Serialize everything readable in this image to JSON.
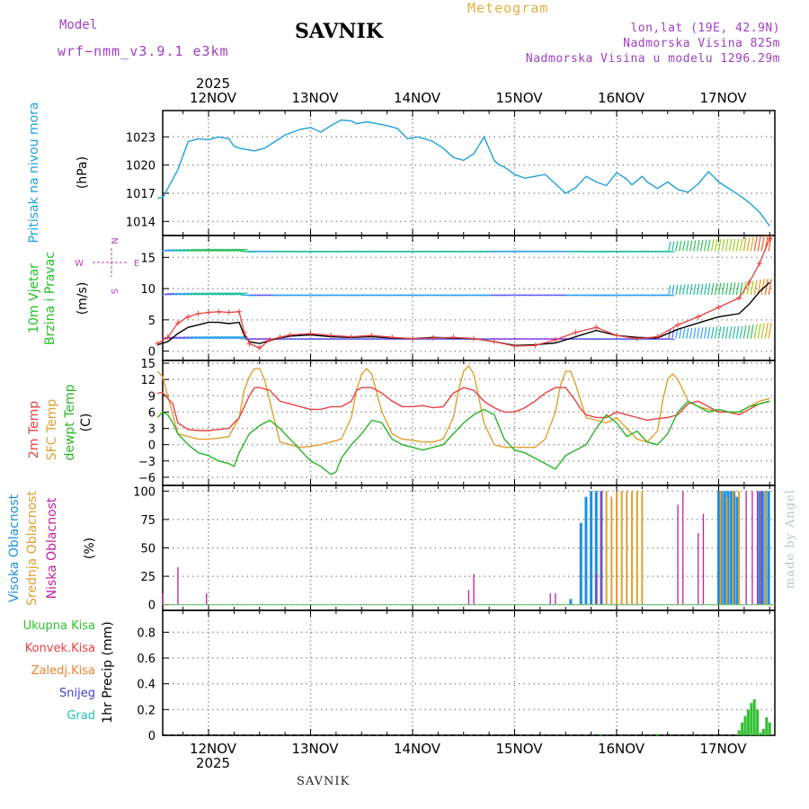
{
  "header": {
    "model_label": "Model",
    "model_name": "wrf−nmm_v3.9.1 e3km",
    "title": "SAVNIK",
    "meteogram": "Meteogram",
    "lonlat": "lon,lat (19E, 42.9N)",
    "altitude": "Nadmorska Visina 825m",
    "model_altitude": "Nadmorska Visina u modelu 1296.29m"
  },
  "footer": {
    "station": "SAVNIK",
    "credit": "made by Angel",
    "year_top": "2025",
    "year_bottom": "2025"
  },
  "colors": {
    "pressure": "#1ea0dc",
    "temp2m": "#e84040",
    "sfctemp": "#e0a030",
    "dewpoint": "#28b428",
    "windspeed": "#000000",
    "gust": "#e84040",
    "high_cloud": "#1e90dc",
    "mid_cloud": "#e0a030",
    "low_cloud": "#c020a0",
    "total_precip": "#30c030",
    "conv_precip": "#e84040",
    "frozen_precip": "#f08030",
    "snow": "#4040d0",
    "graupel": "#20c0c0",
    "wind_label": "#20c020",
    "compass": "#c040c0"
  },
  "chart_data": [
    {
      "type": "line",
      "title": "Pritisak na nivou mora",
      "ylabel": "(hPa)",
      "ylim": [
        1012.5,
        1025.8
      ],
      "yticks": [
        1014,
        1017,
        1020,
        1023
      ],
      "x_unit": "days since 12NOV 00UTC",
      "x_categories": [
        "12NOV",
        "13NOV",
        "14NOV",
        "15NOV",
        "16NOV",
        "17NOV"
      ],
      "series": [
        {
          "name": "Pritisak na nivou mora",
          "x": [
            -0.5,
            -0.45,
            -0.4,
            -0.3,
            -0.25,
            -0.2,
            -0.1,
            0,
            0.1,
            0.2,
            0.25,
            0.3,
            0.35,
            0.45,
            0.55,
            0.65,
            0.75,
            0.9,
            1.0,
            1.1,
            1.2,
            1.3,
            1.4,
            1.45,
            1.55,
            1.65,
            1.75,
            1.85,
            1.95,
            2.05,
            2.15,
            2.2,
            2.3,
            2.4,
            2.5,
            2.6,
            2.7,
            2.8,
            2.85,
            2.9,
            3.0,
            3.1,
            3.2,
            3.3,
            3.4,
            3.5,
            3.6,
            3.7,
            3.8,
            3.9,
            4.0,
            4.1,
            4.15,
            4.25,
            4.3,
            4.4,
            4.5,
            4.6,
            4.7,
            4.8,
            4.9,
            5.0,
            5.1,
            5.2,
            5.3,
            5.4,
            5.5
          ],
          "values": [
            1016.5,
            1016.5,
            1017.5,
            1019.5,
            1021.0,
            1022.5,
            1022.8,
            1022.7,
            1023.0,
            1022.8,
            1022.0,
            1021.8,
            1021.7,
            1021.5,
            1021.8,
            1022.5,
            1023.2,
            1023.8,
            1024.0,
            1023.5,
            1024.2,
            1024.8,
            1024.7,
            1024.4,
            1024.6,
            1024.4,
            1024.2,
            1023.9,
            1022.8,
            1023.0,
            1022.7,
            1022.5,
            1021.8,
            1020.8,
            1020.5,
            1021.2,
            1023.0,
            1020.5,
            1020.0,
            1019.8,
            1019.0,
            1018.6,
            1018.8,
            1019.0,
            1018.0,
            1017.0,
            1017.6,
            1018.8,
            1018.2,
            1017.8,
            1019.2,
            1018.5,
            1017.9,
            1018.8,
            1018.2,
            1017.5,
            1018.2,
            1017.4,
            1017.1,
            1018.0,
            1019.3,
            1018.2,
            1017.5,
            1016.8,
            1016.0,
            1015.0,
            1013.5
          ]
        }
      ]
    },
    {
      "type": "line",
      "title": "10m Vjetar Brzina i Pravac",
      "ylabel": "(m/s)",
      "ylim": [
        -1.5,
        18.5
      ],
      "yticks": [
        0,
        5,
        10,
        15
      ],
      "compass": {
        "north": "N",
        "south": "S",
        "east": "E",
        "west": "W"
      },
      "series": [
        {
          "name": "windspeed",
          "x": [
            -0.5,
            -0.4,
            -0.3,
            -0.2,
            -0.1,
            0,
            0.1,
            0.2,
            0.3,
            0.35,
            0.4,
            0.5,
            0.6,
            0.7,
            0.8,
            1.0,
            1.2,
            1.4,
            1.6,
            1.8,
            2.0,
            2.2,
            2.4,
            2.6,
            2.8,
            3.0,
            3.2,
            3.4,
            3.6,
            3.8,
            4.0,
            4.2,
            4.4,
            4.6,
            4.8,
            5.0,
            5.2,
            5.3,
            5.4,
            5.5
          ],
          "values": [
            1.0,
            1.5,
            2.8,
            3.8,
            4.2,
            4.6,
            4.6,
            4.4,
            4.6,
            2.5,
            1.5,
            1.2,
            1.7,
            2.1,
            2.4,
            2.6,
            2.3,
            2.2,
            2.3,
            2.1,
            2.0,
            2.2,
            2.1,
            2.0,
            1.5,
            0.9,
            1.0,
            1.3,
            2.3,
            3.3,
            2.5,
            2.2,
            2.1,
            3.5,
            4.5,
            5.5,
            6.0,
            7.5,
            9.5,
            11.0
          ]
        },
        {
          "name": "gust",
          "x": [
            -0.5,
            -0.4,
            -0.3,
            -0.2,
            -0.1,
            0,
            0.1,
            0.2,
            0.3,
            0.35,
            0.4,
            0.5,
            0.6,
            0.7,
            0.8,
            1.0,
            1.2,
            1.4,
            1.6,
            1.8,
            2.0,
            2.2,
            2.4,
            2.6,
            2.8,
            3.0,
            3.2,
            3.4,
            3.6,
            3.8,
            4.0,
            4.2,
            4.4,
            4.6,
            4.8,
            5.0,
            5.2,
            5.3,
            5.4,
            5.5
          ],
          "values": [
            1.2,
            2.2,
            4.5,
            5.5,
            6.0,
            6.2,
            6.3,
            6.2,
            6.3,
            3.0,
            1.2,
            0.5,
            1.8,
            2.2,
            2.6,
            2.8,
            2.5,
            2.3,
            2.5,
            2.2,
            2.0,
            2.1,
            2.2,
            2.0,
            1.5,
            0.8,
            0.9,
            1.8,
            3.0,
            3.8,
            2.5,
            2.0,
            2.3,
            4.2,
            5.5,
            7.0,
            8.5,
            11.0,
            14.0,
            18.0
          ]
        }
      ]
    },
    {
      "type": "line",
      "title": "2m Temp / SFC Temp / dewpt Temp",
      "ylabel": "(C)",
      "ylim": [
        -7.5,
        15.5
      ],
      "yticks": [
        -6,
        -3,
        0,
        3,
        6,
        9,
        12,
        15
      ],
      "series": [
        {
          "name": "2m Temp",
          "x": [
            -0.5,
            -0.45,
            -0.4,
            -0.35,
            -0.3,
            -0.2,
            -0.1,
            0,
            0.1,
            0.2,
            0.3,
            0.4,
            0.45,
            0.5,
            0.6,
            0.7,
            0.8,
            0.9,
            1.0,
            1.1,
            1.2,
            1.3,
            1.4,
            1.45,
            1.5,
            1.6,
            1.7,
            1.8,
            1.9,
            2.0,
            2.1,
            2.2,
            2.3,
            2.4,
            2.5,
            2.6,
            2.7,
            2.8,
            2.9,
            3.0,
            3.1,
            3.2,
            3.3,
            3.4,
            3.5,
            3.6,
            3.65,
            3.7,
            3.8,
            3.9,
            4.0,
            4.1,
            4.2,
            4.3,
            4.4,
            4.5,
            4.6,
            4.7,
            4.8,
            4.9,
            5.0,
            5.1,
            5.2,
            5.3,
            5.4,
            5.5
          ],
          "values": [
            9.5,
            9.6,
            8.5,
            7.5,
            4.0,
            2.8,
            2.6,
            2.6,
            2.8,
            3.0,
            5.0,
            9.0,
            10.5,
            10.5,
            10.0,
            8.0,
            7.5,
            7.0,
            6.5,
            6.5,
            7.0,
            7.0,
            8.0,
            10.0,
            10.5,
            10.5,
            9.5,
            8.0,
            7.0,
            7.0,
            7.2,
            6.8,
            7.0,
            9.5,
            10.5,
            10.0,
            8.0,
            6.8,
            6.0,
            6.0,
            6.8,
            8.0,
            9.5,
            10.5,
            10.5,
            8.0,
            6.5,
            5.5,
            5.0,
            5.0,
            6.0,
            5.5,
            5.0,
            4.5,
            4.8,
            5.0,
            5.5,
            7.5,
            8.0,
            7.0,
            6.0,
            6.0,
            5.5,
            6.5,
            7.5,
            8.0
          ]
        },
        {
          "name": "SFC Temp",
          "x": [
            -0.5,
            -0.45,
            -0.4,
            -0.35,
            -0.3,
            -0.2,
            -0.1,
            0,
            0.1,
            0.2,
            0.3,
            0.35,
            0.4,
            0.45,
            0.5,
            0.55,
            0.6,
            0.7,
            0.8,
            0.9,
            1.0,
            1.1,
            1.2,
            1.3,
            1.4,
            1.45,
            1.5,
            1.55,
            1.6,
            1.7,
            1.8,
            1.9,
            2.0,
            2.1,
            2.2,
            2.3,
            2.4,
            2.45,
            2.5,
            2.55,
            2.6,
            2.7,
            2.8,
            2.9,
            3.0,
            3.1,
            3.2,
            3.3,
            3.4,
            3.45,
            3.5,
            3.55,
            3.6,
            3.7,
            3.8,
            3.9,
            4.0,
            4.1,
            4.2,
            4.3,
            4.4,
            4.45,
            4.5,
            4.55,
            4.6,
            4.7,
            4.8,
            4.9,
            5.0,
            5.1,
            5.2,
            5.3,
            5.4,
            5.5
          ],
          "values": [
            13.5,
            12.5,
            9.0,
            5.5,
            2.0,
            1.5,
            1.0,
            1.0,
            1.2,
            1.5,
            5.0,
            10.0,
            12.5,
            14.0,
            14.0,
            12.0,
            8.0,
            0.5,
            0.0,
            -0.5,
            -0.3,
            0.0,
            0.5,
            1.0,
            5.0,
            10.0,
            13.0,
            14.0,
            13.0,
            6.0,
            2.0,
            1.0,
            0.8,
            0.5,
            0.5,
            1.0,
            5.0,
            10.0,
            13.5,
            14.5,
            13.0,
            4.0,
            0.0,
            -0.5,
            -0.5,
            -0.5,
            -0.5,
            1.0,
            6.0,
            11.0,
            13.5,
            13.5,
            11.0,
            5.0,
            4.5,
            4.0,
            5.0,
            3.0,
            1.0,
            0.5,
            2.5,
            8.0,
            12.0,
            13.0,
            12.0,
            8.0,
            7.0,
            6.5,
            6.0,
            6.0,
            6.0,
            7.0,
            8.0,
            8.5
          ]
        },
        {
          "name": "dewpt Temp",
          "x": [
            -0.5,
            -0.45,
            -0.4,
            -0.35,
            -0.3,
            -0.2,
            -0.1,
            0,
            0.1,
            0.2,
            0.25,
            0.3,
            0.4,
            0.5,
            0.6,
            0.7,
            0.8,
            0.9,
            1.0,
            1.1,
            1.2,
            1.25,
            1.3,
            1.4,
            1.5,
            1.6,
            1.7,
            1.8,
            1.9,
            2.0,
            2.1,
            2.2,
            2.3,
            2.4,
            2.5,
            2.6,
            2.7,
            2.8,
            2.9,
            3.0,
            3.1,
            3.2,
            3.3,
            3.4,
            3.5,
            3.6,
            3.7,
            3.8,
            3.9,
            4.0,
            4.1,
            4.2,
            4.3,
            4.4,
            4.5,
            4.6,
            4.7,
            4.8,
            4.9,
            5.0,
            5.1,
            5.2,
            5.3,
            5.4,
            5.5
          ],
          "values": [
            5.0,
            6.0,
            5.5,
            4.0,
            2.0,
            0.0,
            -1.5,
            -2.0,
            -3.0,
            -3.5,
            -4.0,
            -1.5,
            2.0,
            3.5,
            4.5,
            3.0,
            1.0,
            -1.0,
            -3.0,
            -4.0,
            -5.5,
            -5.0,
            -2.5,
            0.0,
            2.0,
            4.5,
            4.0,
            1.0,
            0.0,
            -0.5,
            -1.0,
            -0.5,
            0.0,
            2.0,
            4.0,
            5.5,
            6.5,
            5.5,
            1.0,
            -1.0,
            -1.5,
            -2.5,
            -3.5,
            -4.5,
            -2.0,
            -1.0,
            0.0,
            3.0,
            5.5,
            4.0,
            1.5,
            2.5,
            0.5,
            0.0,
            2.0,
            6.0,
            8.0,
            7.0,
            6.0,
            6.5,
            6.0,
            6.0,
            7.0,
            7.5,
            8.0
          ]
        }
      ]
    },
    {
      "type": "bar",
      "title": "Visoka Oblacnost / Srednja Oblacnost / Niska Oblacnost",
      "ylabel": "(%)",
      "ylim": [
        -5,
        105
      ],
      "yticks": [
        0,
        25,
        50,
        75,
        100
      ],
      "series": [
        {
          "name": "Visoka Oblacnost",
          "x": [
            3.55,
            3.65,
            3.7,
            3.75,
            3.8,
            3.85,
            5.0,
            5.03,
            5.06,
            5.09,
            5.12,
            5.15,
            5.18,
            5.4,
            5.43,
            5.46,
            5.49
          ],
          "values": [
            5,
            72,
            95,
            100,
            100,
            100,
            100,
            100,
            100,
            100,
            100,
            100,
            95,
            100,
            100,
            100,
            100
          ]
        },
        {
          "name": "Srednja Oblacnost",
          "x": [
            3.9,
            3.95,
            4.0,
            4.05,
            4.1,
            4.15,
            4.2,
            4.25,
            5.02,
            5.08,
            5.14,
            5.2,
            5.46
          ],
          "values": [
            100,
            95,
            100,
            100,
            100,
            100,
            100,
            100,
            100,
            95,
            100,
            100,
            100
          ]
        },
        {
          "name": "Niska Oblacnost",
          "x": [
            -0.45,
            -0.3,
            -0.02,
            2.55,
            2.6,
            3.35,
            3.4,
            3.8,
            3.85,
            4.6,
            4.65,
            4.8,
            4.85,
            5.27,
            5.33,
            5.38,
            5.42
          ],
          "values": [
            10,
            33,
            10,
            13,
            27,
            10,
            10,
            27,
            100,
            88,
            100,
            63,
            80,
            100,
            100,
            100,
            100
          ]
        }
      ]
    },
    {
      "type": "bar",
      "title": "Ukupna Kisa / Konvek.Kisa / Zaledj.Kisa / Snijeg / Grad",
      "ylabel": "1hr Precip (mm)",
      "ylim": [
        0,
        0.97
      ],
      "yticks": [
        0,
        0.2,
        0.4,
        0.6,
        0.8
      ],
      "legend": [
        "Ukupna Kisa",
        "Konvek.Kisa",
        "Zaledj.Kisa",
        "Snijeg",
        "Grad"
      ],
      "series": [
        {
          "name": "Ukupna Kisa",
          "x": [
            3.85,
            4.4,
            5.2,
            5.23,
            5.26,
            5.29,
            5.32,
            5.35,
            5.38,
            5.41,
            5.44,
            5.47,
            5.5
          ],
          "values": [
            0.01,
            0.01,
            0.04,
            0.1,
            0.15,
            0.2,
            0.25,
            0.28,
            0.2,
            0.02,
            0.05,
            0.14,
            0.1
          ]
        }
      ]
    }
  ],
  "panel_labels": {
    "p1": [
      "Pritisak na nivou mora"
    ],
    "p1_unit": "(hPa)",
    "p2": [
      "10m Vjetar",
      "Brzina i Pravac"
    ],
    "p2_unit": "(m/s)",
    "p3": [
      "2m Temp",
      "SFC Temp",
      "dewpt Temp"
    ],
    "p3_unit": "(C)",
    "p4": [
      "Visoka Oblacnost",
      "Srednja Oblacnost",
      "Niska Oblacnost"
    ],
    "p4_unit": "(%)",
    "p5_unit": "1hr Precip (mm)"
  }
}
